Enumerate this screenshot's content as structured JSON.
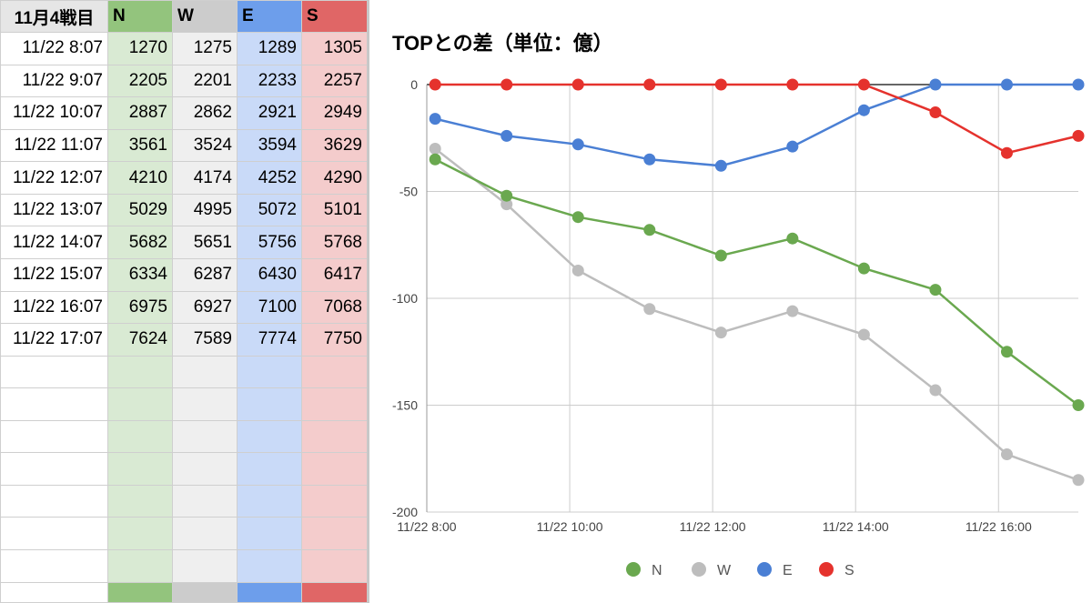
{
  "sheet": {
    "header": {
      "time": "11月4戦目",
      "cols": [
        "N",
        "W",
        "E",
        "S"
      ]
    },
    "rows": [
      {
        "time": "11/22 8:07",
        "values": [
          "1270",
          "1275",
          "1289",
          "1305"
        ]
      },
      {
        "time": "11/22 9:07",
        "values": [
          "2205",
          "2201",
          "2233",
          "2257"
        ]
      },
      {
        "time": "11/22 10:07",
        "values": [
          "2887",
          "2862",
          "2921",
          "2949"
        ]
      },
      {
        "time": "11/22 11:07",
        "values": [
          "3561",
          "3524",
          "3594",
          "3629"
        ]
      },
      {
        "time": "11/22 12:07",
        "values": [
          "4210",
          "4174",
          "4252",
          "4290"
        ]
      },
      {
        "time": "11/22 13:07",
        "values": [
          "5029",
          "4995",
          "5072",
          "5101"
        ]
      },
      {
        "time": "11/22 14:07",
        "values": [
          "5682",
          "5651",
          "5756",
          "5768"
        ]
      },
      {
        "time": "11/22 15:07",
        "values": [
          "6334",
          "6287",
          "6430",
          "6417"
        ]
      },
      {
        "time": "11/22 16:07",
        "values": [
          "6975",
          "6927",
          "7100",
          "7068"
        ]
      },
      {
        "time": "11/22 17:07",
        "values": [
          "7624",
          "7589",
          "7774",
          "7750"
        ]
      }
    ],
    "col_colors": {
      "light": [
        "#d9ead3",
        "#efefef",
        "#c9daf8",
        "#f4cccc"
      ],
      "header": [
        "#93c47d",
        "#cccccc",
        "#6d9eeb",
        "#e06666"
      ]
    }
  },
  "chart_data": {
    "type": "line",
    "title": "TOPとの差（単位：億）",
    "x": [
      8.117,
      9.117,
      10.117,
      11.117,
      12.117,
      13.117,
      14.117,
      15.117,
      16.117,
      17.117
    ],
    "xlim": [
      8,
      17.117
    ],
    "xticks": [
      8,
      10,
      12,
      14,
      16
    ],
    "xtick_labels": [
      "11/22 8:00",
      "11/22 10:00",
      "11/22 12:00",
      "11/22 14:00",
      "11/22 16:00"
    ],
    "ylim": [
      -200,
      0
    ],
    "yticks": [
      0,
      -50,
      -100,
      -150,
      -200
    ],
    "ytick_labels": [
      "0",
      "-50",
      "-100",
      "-150",
      "-200"
    ],
    "series": [
      {
        "name": "N",
        "color": "#6aa84f",
        "values": [
          -35,
          -52,
          -62,
          -68,
          -80,
          -72,
          -86,
          -96,
          -125,
          -150
        ]
      },
      {
        "name": "W",
        "color": "#bdbdbd",
        "values": [
          -30,
          -56,
          -87,
          -105,
          -116,
          -106,
          -117,
          -143,
          -173,
          -185
        ]
      },
      {
        "name": "E",
        "color": "#4a7fd4",
        "values": [
          -16,
          -24,
          -28,
          -35,
          -38,
          -29,
          -12,
          0,
          0,
          0
        ]
      },
      {
        "name": "S",
        "color": "#e5322d",
        "values": [
          0,
          0,
          0,
          0,
          0,
          0,
          0,
          -13,
          -32,
          -24
        ]
      }
    ],
    "legend_position": "bottom",
    "grid": true
  }
}
